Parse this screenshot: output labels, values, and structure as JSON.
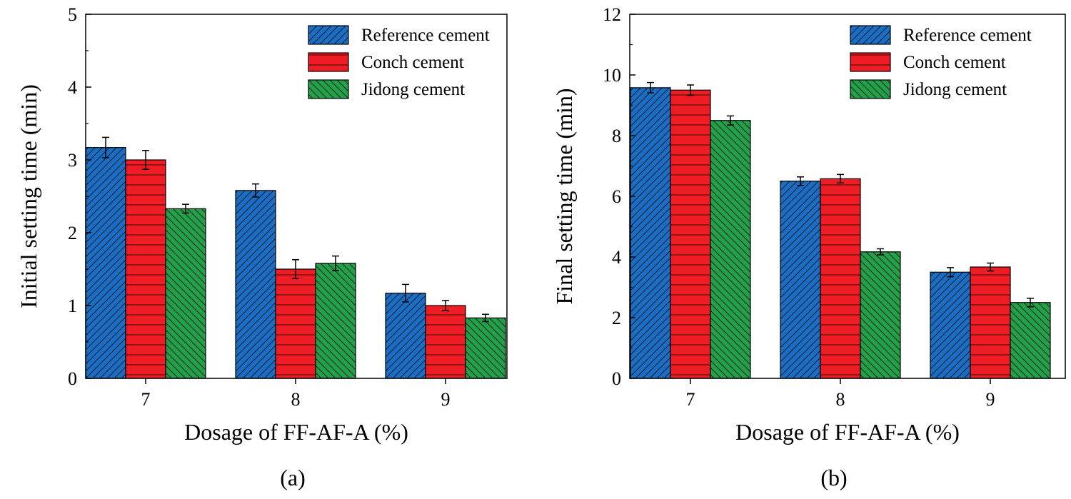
{
  "colors": {
    "reference": "#1a6fc4",
    "conch": "#ee1c24",
    "jidong": "#23a04a"
  },
  "chart_data": [
    {
      "type": "bar",
      "panel_label": "(a)",
      "xlabel": "Dosage of FF-AF-A (%)",
      "ylabel": "Initial setting time (min)",
      "categories": [
        "7",
        "8",
        "9"
      ],
      "ylim": [
        0,
        5
      ],
      "yticks": [
        "0",
        "1",
        "2",
        "3",
        "4",
        "5"
      ],
      "legend_position": "top-right",
      "series": [
        {
          "name": "Reference cement",
          "color_key": "reference",
          "pattern": "diag-fwd",
          "values": [
            3.17,
            2.58,
            1.17
          ],
          "errors": [
            0.14,
            0.09,
            0.12
          ]
        },
        {
          "name": "Conch cement",
          "color_key": "conch",
          "pattern": "horiz",
          "values": [
            3.0,
            1.5,
            1.0
          ],
          "errors": [
            0.13,
            0.13,
            0.07
          ]
        },
        {
          "name": "Jidong cement",
          "color_key": "jidong",
          "pattern": "diag-back",
          "values": [
            2.33,
            1.58,
            0.83
          ],
          "errors": [
            0.06,
            0.1,
            0.05
          ]
        }
      ]
    },
    {
      "type": "bar",
      "panel_label": "(b)",
      "xlabel": "Dosage of FF-AF-A (%)",
      "ylabel": "Final setting time (min)",
      "categories": [
        "7",
        "8",
        "9"
      ],
      "ylim": [
        0,
        12
      ],
      "yticks": [
        "0",
        "2",
        "4",
        "6",
        "8",
        "10",
        "12"
      ],
      "legend_position": "top-right",
      "series": [
        {
          "name": "Reference cement",
          "color_key": "reference",
          "pattern": "diag-fwd",
          "values": [
            9.58,
            6.5,
            3.5
          ],
          "errors": [
            0.17,
            0.14,
            0.15
          ]
        },
        {
          "name": "Conch cement",
          "color_key": "conch",
          "pattern": "horiz",
          "values": [
            9.5,
            6.58,
            3.67
          ],
          "errors": [
            0.17,
            0.14,
            0.13
          ]
        },
        {
          "name": "Jidong cement",
          "color_key": "jidong",
          "pattern": "diag-back",
          "values": [
            8.5,
            4.17,
            2.5
          ],
          "errors": [
            0.15,
            0.1,
            0.14
          ]
        }
      ]
    }
  ]
}
